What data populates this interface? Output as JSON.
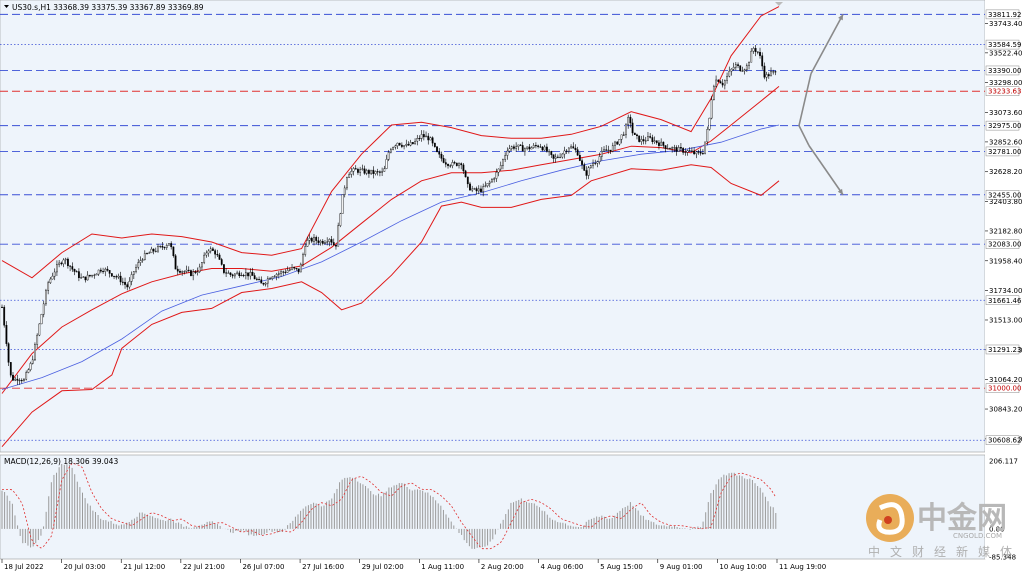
{
  "chart_data": {
    "type": "candlestick",
    "symbol_header": "US30.s,H1  33368.39 33375.39 33367.89 33369.89",
    "macd_header": "MACD(12,26,9) 18.306 39.043",
    "price_axis": {
      "ylim": [
        30520,
        33920
      ],
      "ticks": [
        {
          "label": "33743.40",
          "value": 33743.4
        },
        {
          "label": "33522.40",
          "value": 33522.4
        },
        {
          "label": "33298.00",
          "value": 33298.0
        },
        {
          "label": "33073.60",
          "value": 33073.6
        },
        {
          "label": "32852.60",
          "value": 32852.6
        },
        {
          "label": "32628.20",
          "value": 32628.2
        },
        {
          "label": "32403.80",
          "value": 32403.8
        },
        {
          "label": "32182.80",
          "value": 32182.8
        },
        {
          "label": "31958.40",
          "value": 31958.4
        },
        {
          "label": "31734.00",
          "value": 31734.0
        },
        {
          "label": "31513.00",
          "value": 31513.0
        },
        {
          "label": "31288.60",
          "value": 31288.6
        },
        {
          "label": "31064.20",
          "value": 31064.2
        },
        {
          "label": "30843.20",
          "value": 30843.2
        },
        {
          "label": "30618.80",
          "value": 30618.8
        }
      ]
    },
    "levels": [
      {
        "label": "33811.92",
        "value": 33811.92,
        "color": "#3a4fd6",
        "dash": "long"
      },
      {
        "label": "33584.59",
        "value": 33584.59,
        "color": "#3a4fd6",
        "dash": "dot"
      },
      {
        "label": "33390.00",
        "value": 33390.0,
        "color": "#3a4fd6",
        "dash": "long"
      },
      {
        "label": "33233.63",
        "value": 33233.63,
        "color": "#e03030",
        "dash": "long"
      },
      {
        "label": "32975.00",
        "value": 32975.0,
        "color": "#3a4fd6",
        "dash": "long"
      },
      {
        "label": "32781.00",
        "value": 32781.0,
        "color": "#3a4fd6",
        "dash": "long"
      },
      {
        "label": "32455.00",
        "value": 32455.0,
        "color": "#3a4fd6",
        "dash": "long"
      },
      {
        "label": "32083.00",
        "value": 32083.0,
        "color": "#3a4fd6",
        "dash": "long"
      },
      {
        "label": "31661.46",
        "value": 31661.46,
        "color": "#3a4fd6",
        "dash": "dot"
      },
      {
        "label": "31291.23",
        "value": 31291.23,
        "color": "#3a4fd6",
        "dash": "dot"
      },
      {
        "label": "31000.00",
        "value": 31000.0,
        "color": "#e03030",
        "dash": "long"
      },
      {
        "label": "30608.62",
        "value": 30608.62,
        "color": "#3a4fd6",
        "dash": "dot"
      }
    ],
    "time_axis": {
      "labels": [
        "18 Jul 2022",
        "20 Jul 03:00",
        "21 Jul 12:00",
        "22 Jul 21:00",
        "26 Jul 07:00",
        "27 Jul 16:00",
        "29 Jul 02:00",
        "1 Aug 11:00",
        "2 Aug 20:00",
        "4 Aug 06:00",
        "5 Aug 15:00",
        "9 Aug 01:00",
        "10 Aug 10:00",
        "11 Aug 19:00"
      ]
    },
    "price_path": [
      [
        0,
        31610
      ],
      [
        4,
        31380
      ],
      [
        8,
        31100
      ],
      [
        12,
        31060
      ],
      [
        16,
        31080
      ],
      [
        22,
        31060
      ],
      [
        30,
        31200
      ],
      [
        38,
        31500
      ],
      [
        46,
        31790
      ],
      [
        54,
        31900
      ],
      [
        62,
        31980
      ],
      [
        70,
        31900
      ],
      [
        80,
        31820
      ],
      [
        90,
        31850
      ],
      [
        100,
        31900
      ],
      [
        110,
        31860
      ],
      [
        118,
        31820
      ],
      [
        126,
        31760
      ],
      [
        132,
        31880
      ],
      [
        140,
        31980
      ],
      [
        150,
        32030
      ],
      [
        160,
        32060
      ],
      [
        168,
        32100
      ],
      [
        174,
        31900
      ],
      [
        182,
        31880
      ],
      [
        190,
        31860
      ],
      [
        198,
        31900
      ],
      [
        206,
        32050
      ],
      [
        214,
        32020
      ],
      [
        222,
        31880
      ],
      [
        230,
        31850
      ],
      [
        240,
        31870
      ],
      [
        250,
        31850
      ],
      [
        260,
        31780
      ],
      [
        270,
        31850
      ],
      [
        280,
        31870
      ],
      [
        290,
        31900
      ],
      [
        298,
        31880
      ],
      [
        304,
        32100
      ],
      [
        312,
        32120
      ],
      [
        320,
        32100
      ],
      [
        328,
        32130
      ],
      [
        334,
        32060
      ],
      [
        340,
        32400
      ],
      [
        346,
        32620
      ],
      [
        354,
        32640
      ],
      [
        362,
        32630
      ],
      [
        372,
        32620
      ],
      [
        382,
        32620
      ],
      [
        388,
        32800
      ],
      [
        396,
        32850
      ],
      [
        404,
        32820
      ],
      [
        412,
        32840
      ],
      [
        420,
        32900
      ],
      [
        428,
        32880
      ],
      [
        436,
        32760
      ],
      [
        444,
        32700
      ],
      [
        452,
        32680
      ],
      [
        460,
        32700
      ],
      [
        466,
        32520
      ],
      [
        474,
        32480
      ],
      [
        482,
        32500
      ],
      [
        490,
        32560
      ],
      [
        498,
        32650
      ],
      [
        506,
        32800
      ],
      [
        514,
        32820
      ],
      [
        522,
        32800
      ],
      [
        530,
        32810
      ],
      [
        538,
        32830
      ],
      [
        546,
        32780
      ],
      [
        552,
        32720
      ],
      [
        560,
        32760
      ],
      [
        568,
        32820
      ],
      [
        576,
        32780
      ],
      [
        584,
        32600
      ],
      [
        590,
        32680
      ],
      [
        596,
        32720
      ],
      [
        602,
        32780
      ],
      [
        610,
        32800
      ],
      [
        618,
        32870
      ],
      [
        624,
        32940
      ],
      [
        628,
        33050
      ],
      [
        632,
        32900
      ],
      [
        640,
        32860
      ],
      [
        648,
        32880
      ],
      [
        656,
        32850
      ],
      [
        664,
        32820
      ],
      [
        672,
        32800
      ],
      [
        680,
        32790
      ],
      [
        688,
        32780
      ],
      [
        696,
        32760
      ],
      [
        702,
        32780
      ],
      [
        708,
        33000
      ],
      [
        712,
        33280
      ],
      [
        716,
        33330
      ],
      [
        722,
        33290
      ],
      [
        728,
        33370
      ],
      [
        734,
        33430
      ],
      [
        740,
        33400
      ],
      [
        746,
        33420
      ],
      [
        752,
        33560
      ],
      [
        758,
        33520
      ],
      [
        764,
        33340
      ],
      [
        770,
        33370
      ],
      [
        776,
        33370
      ]
    ],
    "bands": {
      "upper": [
        [
          0,
          31960
        ],
        [
          30,
          31830
        ],
        [
          60,
          32020
        ],
        [
          90,
          32160
        ],
        [
          120,
          32130
        ],
        [
          150,
          32160
        ],
        [
          180,
          32140
        ],
        [
          210,
          32100
        ],
        [
          240,
          32020
        ],
        [
          270,
          32000
        ],
        [
          300,
          32050
        ],
        [
          330,
          32480
        ],
        [
          360,
          32760
        ],
        [
          390,
          32980
        ],
        [
          420,
          33000
        ],
        [
          450,
          32960
        ],
        [
          480,
          32900
        ],
        [
          510,
          32880
        ],
        [
          540,
          32880
        ],
        [
          570,
          32910
        ],
        [
          600,
          32970
        ],
        [
          630,
          33080
        ],
        [
          660,
          33020
        ],
        [
          690,
          32930
        ],
        [
          710,
          33180
        ],
        [
          730,
          33500
        ],
        [
          760,
          33800
        ],
        [
          778,
          33870
        ]
      ],
      "middle": [
        [
          0,
          30960
        ],
        [
          30,
          31260
        ],
        [
          60,
          31460
        ],
        [
          90,
          31590
        ],
        [
          120,
          31710
        ],
        [
          150,
          31800
        ],
        [
          180,
          31860
        ],
        [
          210,
          31900
        ],
        [
          240,
          31900
        ],
        [
          270,
          31880
        ],
        [
          300,
          31920
        ],
        [
          330,
          32060
        ],
        [
          360,
          32240
        ],
        [
          390,
          32420
        ],
        [
          420,
          32560
        ],
        [
          450,
          32620
        ],
        [
          480,
          32620
        ],
        [
          510,
          32640
        ],
        [
          540,
          32680
        ],
        [
          570,
          32720
        ],
        [
          600,
          32760
        ],
        [
          630,
          32820
        ],
        [
          660,
          32810
        ],
        [
          690,
          32770
        ],
        [
          710,
          32860
        ],
        [
          730,
          32980
        ],
        [
          760,
          33160
        ],
        [
          778,
          33270
        ]
      ],
      "lower": [
        [
          0,
          30560
        ],
        [
          30,
          30820
        ],
        [
          60,
          30980
        ],
        [
          90,
          30990
        ],
        [
          110,
          31100
        ],
        [
          120,
          31300
        ],
        [
          150,
          31480
        ],
        [
          180,
          31570
        ],
        [
          210,
          31600
        ],
        [
          240,
          31720
        ],
        [
          270,
          31750
        ],
        [
          300,
          31800
        ],
        [
          320,
          31720
        ],
        [
          340,
          31590
        ],
        [
          360,
          31640
        ],
        [
          390,
          31850
        ],
        [
          420,
          32100
        ],
        [
          440,
          32370
        ],
        [
          460,
          32400
        ],
        [
          480,
          32360
        ],
        [
          510,
          32360
        ],
        [
          540,
          32420
        ],
        [
          570,
          32450
        ],
        [
          590,
          32560
        ],
        [
          630,
          32650
        ],
        [
          660,
          32640
        ],
        [
          690,
          32680
        ],
        [
          710,
          32660
        ],
        [
          730,
          32540
        ],
        [
          760,
          32450
        ],
        [
          778,
          32560
        ]
      ],
      "ma_blue": [
        [
          0,
          30990
        ],
        [
          40,
          31080
        ],
        [
          80,
          31200
        ],
        [
          120,
          31370
        ],
        [
          160,
          31580
        ],
        [
          200,
          31700
        ],
        [
          240,
          31770
        ],
        [
          280,
          31840
        ],
        [
          320,
          31950
        ],
        [
          360,
          32100
        ],
        [
          400,
          32260
        ],
        [
          440,
          32400
        ],
        [
          480,
          32470
        ],
        [
          520,
          32560
        ],
        [
          560,
          32640
        ],
        [
          600,
          32710
        ],
        [
          640,
          32760
        ],
        [
          680,
          32790
        ],
        [
          720,
          32850
        ],
        [
          760,
          32950
        ],
        [
          778,
          32980
        ]
      ]
    },
    "macd_axis": {
      "ticks": [
        {
          "label": "206.117",
          "value": 206.117
        },
        {
          "label": "0.00",
          "value": 0
        },
        {
          "label": "-85.348",
          "value": -85.348
        }
      ]
    },
    "macd_path": [
      [
        0,
        120
      ],
      [
        10,
        80
      ],
      [
        20,
        -40
      ],
      [
        30,
        -60
      ],
      [
        40,
        -20
      ],
      [
        50,
        150
      ],
      [
        60,
        200
      ],
      [
        70,
        190
      ],
      [
        80,
        110
      ],
      [
        90,
        60
      ],
      [
        100,
        30
      ],
      [
        110,
        20
      ],
      [
        120,
        10
      ],
      [
        130,
        30
      ],
      [
        140,
        50
      ],
      [
        150,
        40
      ],
      [
        160,
        25
      ],
      [
        170,
        30
      ],
      [
        180,
        10
      ],
      [
        190,
        5
      ],
      [
        200,
        15
      ],
      [
        210,
        20
      ],
      [
        220,
        5
      ],
      [
        230,
        -10
      ],
      [
        240,
        -5
      ],
      [
        250,
        -20
      ],
      [
        260,
        -15
      ],
      [
        270,
        -5
      ],
      [
        280,
        -10
      ],
      [
        290,
        20
      ],
      [
        300,
        60
      ],
      [
        310,
        80
      ],
      [
        320,
        70
      ],
      [
        330,
        90
      ],
      [
        340,
        150
      ],
      [
        350,
        160
      ],
      [
        360,
        140
      ],
      [
        370,
        110
      ],
      [
        380,
        100
      ],
      [
        390,
        130
      ],
      [
        400,
        140
      ],
      [
        410,
        120
      ],
      [
        420,
        120
      ],
      [
        430,
        100
      ],
      [
        440,
        70
      ],
      [
        450,
        20
      ],
      [
        460,
        -20
      ],
      [
        470,
        -60
      ],
      [
        480,
        -60
      ],
      [
        490,
        -40
      ],
      [
        500,
        20
      ],
      [
        510,
        80
      ],
      [
        520,
        90
      ],
      [
        530,
        80
      ],
      [
        540,
        60
      ],
      [
        550,
        30
      ],
      [
        560,
        20
      ],
      [
        570,
        10
      ],
      [
        580,
        5
      ],
      [
        590,
        30
      ],
      [
        600,
        40
      ],
      [
        610,
        30
      ],
      [
        620,
        60
      ],
      [
        630,
        80
      ],
      [
        640,
        40
      ],
      [
        650,
        20
      ],
      [
        660,
        10
      ],
      [
        670,
        10
      ],
      [
        680,
        5
      ],
      [
        690,
        0
      ],
      [
        700,
        5
      ],
      [
        710,
        110
      ],
      [
        720,
        160
      ],
      [
        730,
        170
      ],
      [
        740,
        160
      ],
      [
        750,
        150
      ],
      [
        760,
        120
      ],
      [
        770,
        70
      ],
      [
        778,
        40
      ]
    ],
    "annotation_arrows": true,
    "watermark": {
      "brand": "中金网",
      "domain": "CNGOLD.COM",
      "tagline": "中文财经新媒体"
    }
  }
}
